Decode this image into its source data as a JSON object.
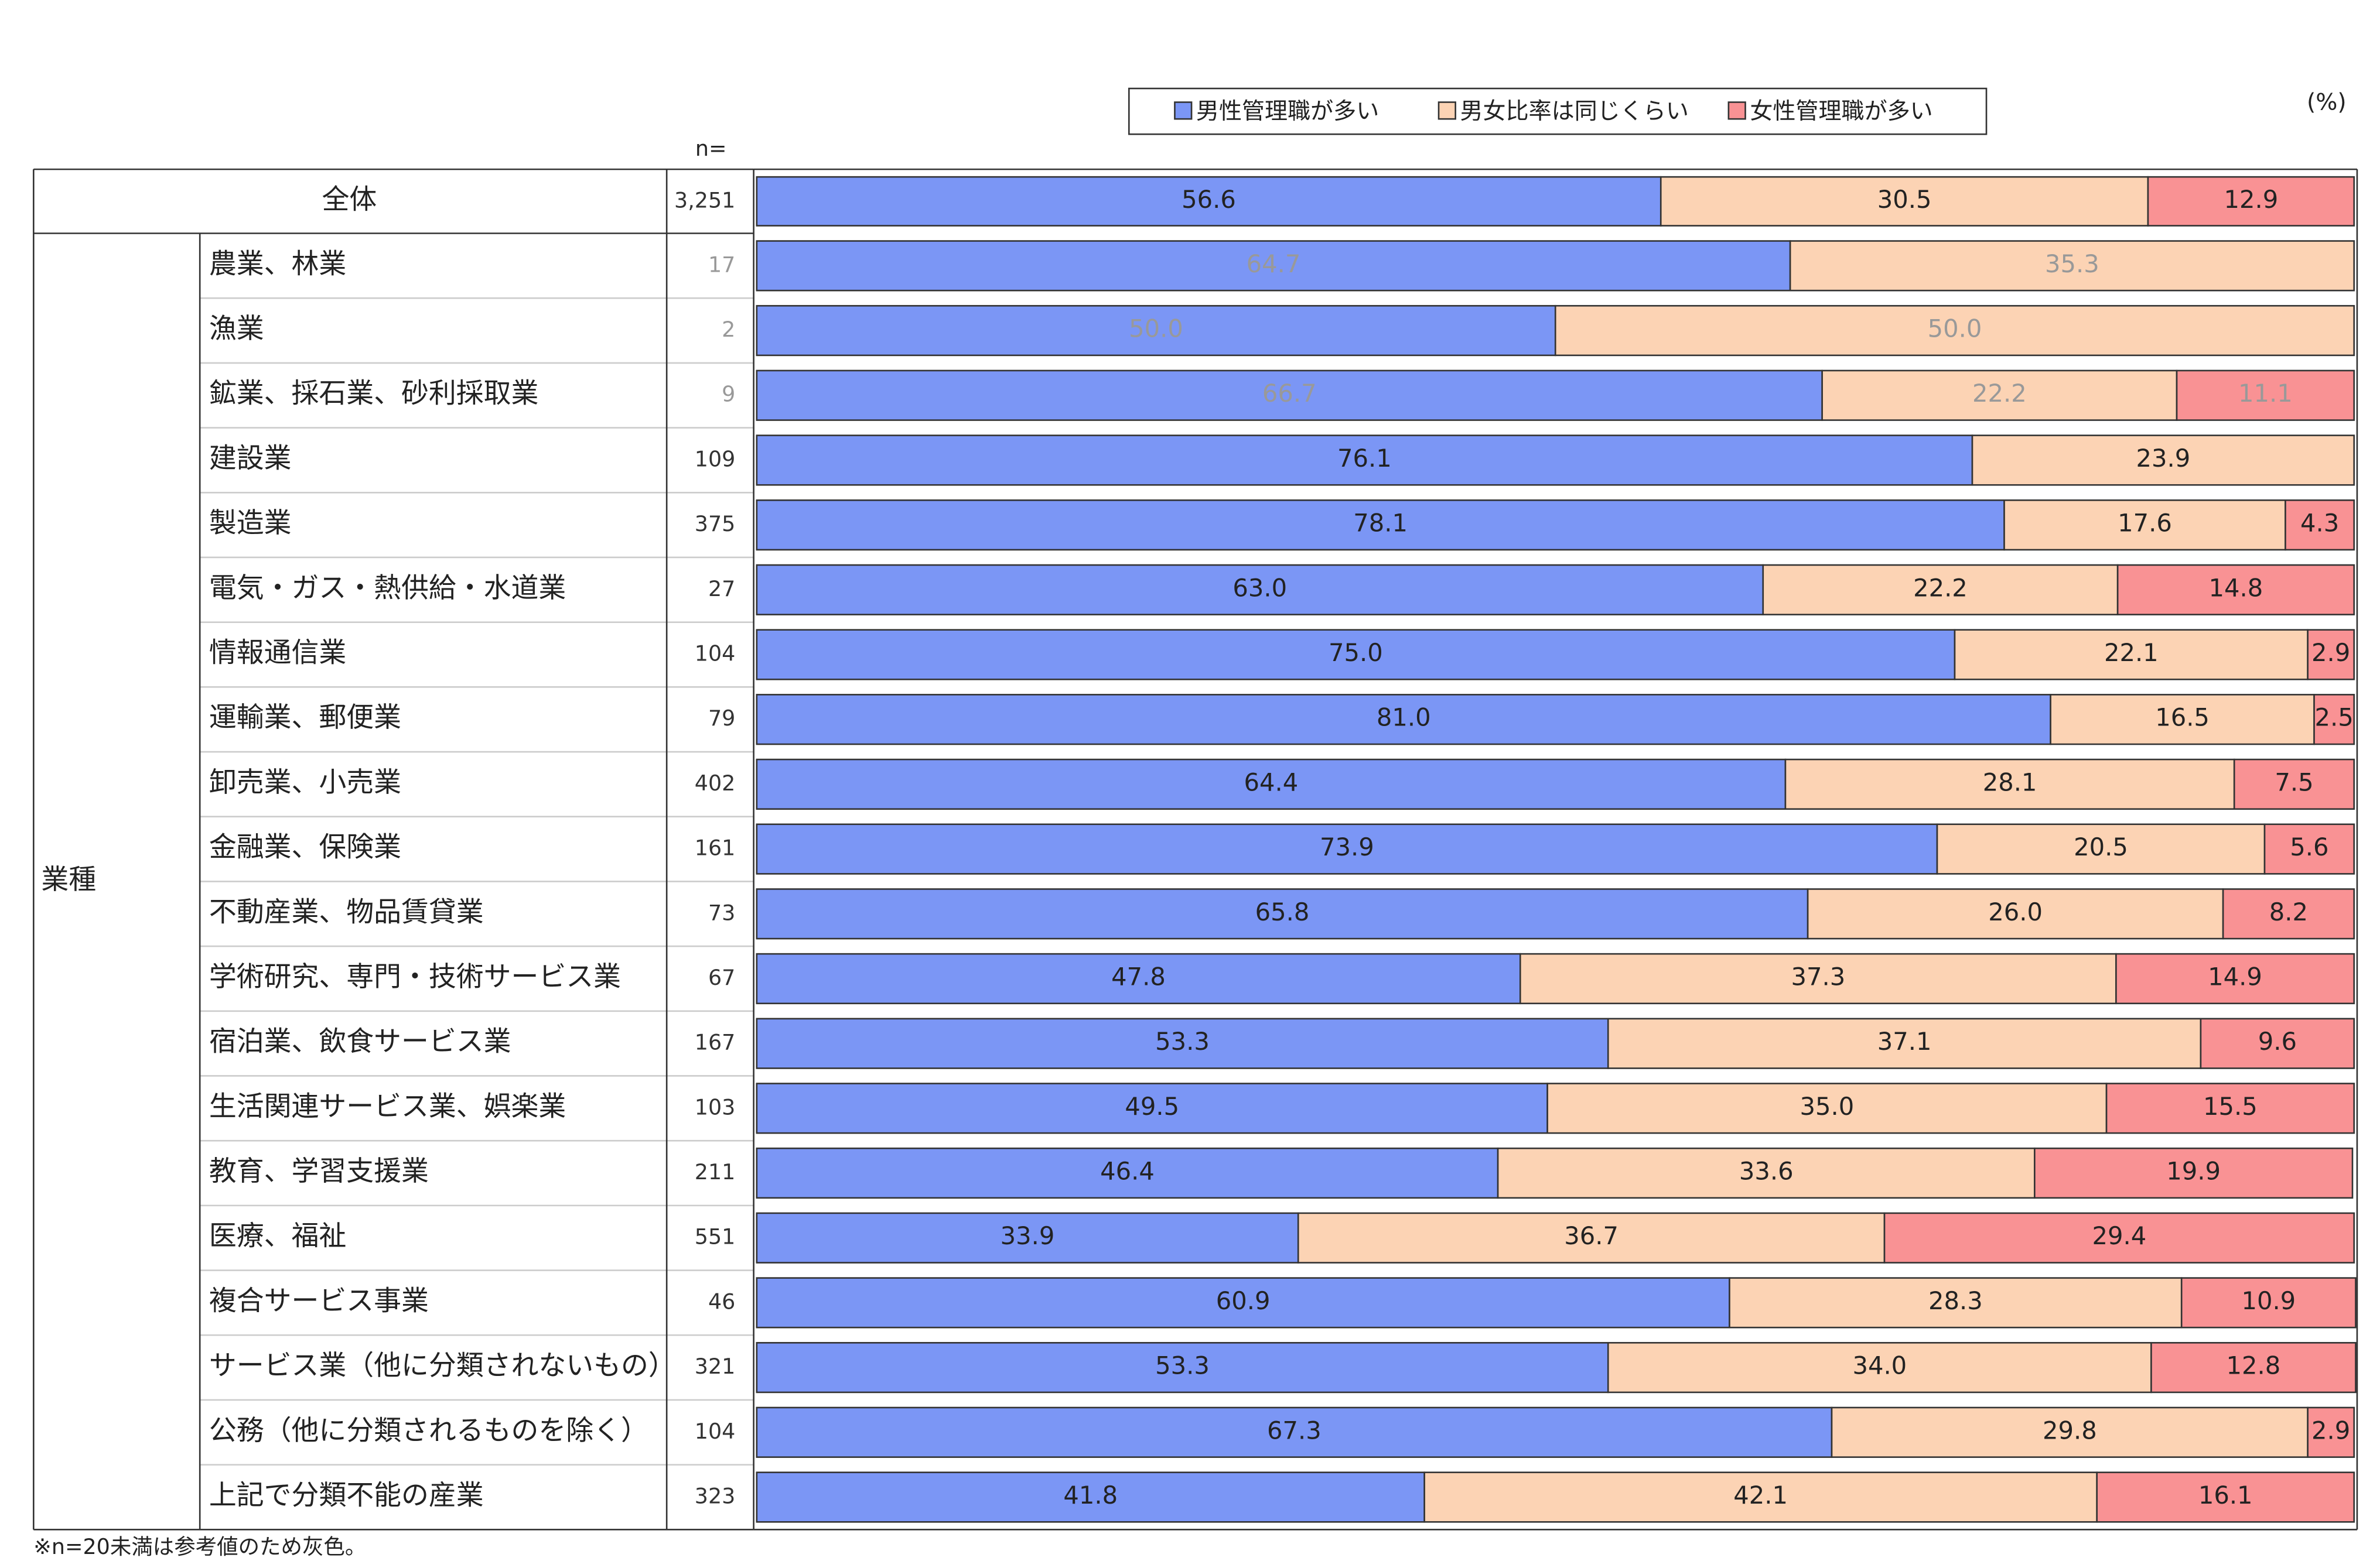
{
  "chart_data": {
    "type": "stacked-bar",
    "orientation": "horizontal",
    "unit_label": "(%)",
    "n_header": "n=",
    "group_label": "業種",
    "note": "※n=20未満は参考値のため灰色。",
    "gray_threshold": 20,
    "categories": [
      "全体",
      "農業、林業",
      "漁業",
      "鉱業、採石業、砂利採取業",
      "建設業",
      "製造業",
      "電気・ガス・熱供給・水道業",
      "情報通信業",
      "運輸業、郵便業",
      "卸売業、小売業",
      "金融業、保険業",
      "不動産業、物品賃貸業",
      "学術研究、専門・技術サービス業",
      "宿泊業、飲食サービス業",
      "生活関連サービス業、娯楽業",
      "教育、学習支援業",
      "医療、福祉",
      "複合サービス事業",
      "サービス業（他に分類されないもの）",
      "公務（他に分類されるものを除く）",
      "上記で分類不能の産業"
    ],
    "n": [
      {
        "value": 3251,
        "label": "3,251"
      },
      17,
      2,
      9,
      109,
      375,
      27,
      104,
      79,
      402,
      161,
      73,
      67,
      167,
      103,
      211,
      551,
      46,
      321,
      104,
      323
    ],
    "xlim": [
      0,
      100
    ],
    "series": [
      {
        "name": "男性管理職が多い",
        "color": "#7b96f5",
        "values": [
          56.6,
          64.7,
          50.0,
          66.7,
          76.1,
          78.1,
          63.0,
          75.0,
          81.0,
          64.4,
          73.9,
          65.8,
          47.8,
          53.3,
          49.5,
          46.4,
          33.9,
          60.9,
          53.3,
          67.3,
          41.8
        ],
        "value_labels": [
          "56.6",
          "64.7",
          "50.0",
          "66.7",
          "76.1",
          "78.1",
          "63.0",
          "75.0",
          "81.0",
          "64.4",
          "73.9",
          "65.8",
          "47.8",
          "53.3",
          "49.5",
          "46.4",
          "33.9",
          "60.9",
          "53.3",
          "67.3",
          "41.8"
        ]
      },
      {
        "name": "男女比率は同じくらい",
        "color": "#fcd3b4",
        "values": [
          30.5,
          35.3,
          50.0,
          22.2,
          23.9,
          17.6,
          22.2,
          22.1,
          16.5,
          28.1,
          20.5,
          26.0,
          37.3,
          37.1,
          35.0,
          33.6,
          36.7,
          28.3,
          34.0,
          29.8,
          42.1
        ],
        "value_labels": [
          "30.5",
          "35.3",
          "50.0",
          "22.2",
          "23.9",
          "17.6",
          "22.2",
          "22.1",
          "16.5",
          "28.1",
          "20.5",
          "26.0",
          "37.3",
          "37.1",
          "35.0",
          "33.6",
          "36.7",
          "28.3",
          "34.0",
          "29.8",
          "42.1"
        ]
      },
      {
        "name": "女性管理職が多い",
        "color": "#f99294",
        "values": [
          12.9,
          null,
          null,
          11.1,
          null,
          4.3,
          14.8,
          2.9,
          2.5,
          7.5,
          5.6,
          8.2,
          14.9,
          9.6,
          15.5,
          19.9,
          29.4,
          10.9,
          12.8,
          2.9,
          16.1
        ],
        "value_labels": [
          "12.9",
          null,
          null,
          "11.1",
          null,
          "4.3",
          "14.8",
          "2.9",
          "2.5",
          "7.5",
          "5.6",
          "8.2",
          "14.9",
          "9.6",
          "15.5",
          "19.9",
          "29.4",
          "10.9",
          "12.8",
          "2.9",
          "16.1"
        ]
      }
    ]
  }
}
